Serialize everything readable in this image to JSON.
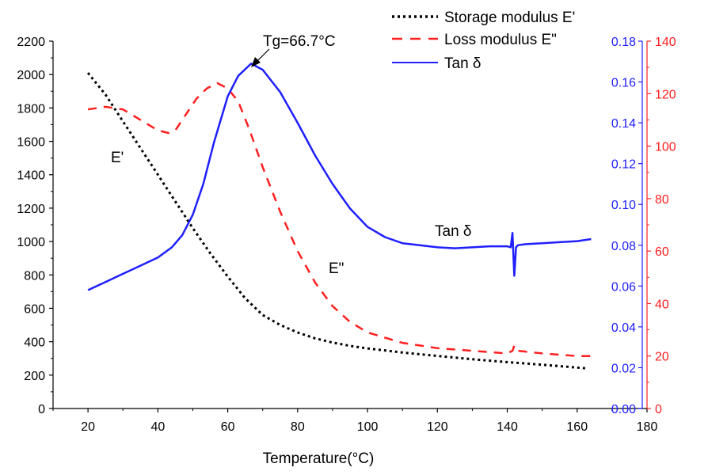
{
  "chart_data": {
    "type": "line",
    "title": "",
    "xlabel": "Temperature(°C)",
    "xlim": [
      10,
      180
    ],
    "x_ticks": [
      20,
      40,
      60,
      80,
      100,
      120,
      140,
      160,
      180
    ],
    "y_left": {
      "label": "",
      "lim": [
        0,
        2200
      ],
      "ticks": [
        0,
        200,
        400,
        600,
        800,
        1000,
        1200,
        1400,
        1600,
        1800,
        2000,
        2200
      ],
      "color": "#000000"
    },
    "y_right_blue": {
      "label": "",
      "lim": [
        0,
        0.18
      ],
      "ticks": [
        "0.00",
        "0.02",
        "0.04",
        "0.06",
        "0.08",
        "0.10",
        "0.12",
        "0.14",
        "0.16",
        "0.18"
      ],
      "color": "#1f1fff"
    },
    "y_right_red": {
      "label": "",
      "lim": [
        0,
        140
      ],
      "ticks": [
        0,
        20,
        40,
        60,
        80,
        100,
        120,
        140
      ],
      "color": "#ff1f1f"
    },
    "legend": {
      "placement": "top-right",
      "entries": [
        "Storage modulus E'",
        "Loss modulus E\"",
        "Tan δ"
      ]
    },
    "annotations": {
      "tg": "Tg=66.7°C",
      "e_prime": "E'",
      "e_double_prime": "E\"",
      "tan_delta": "Tan δ"
    },
    "series": [
      {
        "name": "Storage modulus E'",
        "axis": "left",
        "color": "#000000",
        "style": "dotted",
        "x": [
          20,
          25,
          30,
          35,
          40,
          45,
          50,
          55,
          60,
          65,
          70,
          75,
          80,
          85,
          90,
          95,
          100,
          110,
          120,
          130,
          140,
          150,
          160,
          163
        ],
        "y": [
          2010,
          1880,
          1720,
          1560,
          1400,
          1240,
          1080,
          930,
          790,
          660,
          560,
          500,
          455,
          420,
          395,
          375,
          360,
          335,
          315,
          295,
          278,
          262,
          245,
          240
        ]
      },
      {
        "name": "Loss modulus E\"",
        "axis": "right_red",
        "color": "#ff1f1f",
        "style": "dashed",
        "x": [
          20,
          25,
          30,
          35,
          40,
          43,
          45,
          48,
          51,
          54,
          57,
          60,
          63,
          66,
          70,
          75,
          80,
          85,
          90,
          95,
          100,
          110,
          120,
          130,
          140,
          141.5,
          142,
          143,
          150,
          160,
          164
        ],
        "y": [
          114,
          115,
          114,
          110,
          106,
          105,
          106,
          112,
          118,
          122,
          124,
          122,
          117,
          107,
          92,
          75,
          60,
          48,
          39,
          33,
          29,
          25,
          23,
          22,
          21,
          22,
          24,
          22,
          21,
          20,
          20
        ]
      },
      {
        "name": "Tan δ",
        "axis": "right_blue",
        "color": "#1f1fff",
        "style": "solid",
        "x": [
          20,
          25,
          30,
          35,
          40,
          44,
          47,
          50,
          53,
          56,
          60,
          63,
          66.7,
          70,
          75,
          80,
          85,
          90,
          95,
          100,
          105,
          110,
          115,
          120,
          125,
          130,
          135,
          140,
          141,
          141.5,
          142,
          142.5,
          143,
          145,
          150,
          155,
          160,
          164
        ],
        "y": [
          0.058,
          0.062,
          0.066,
          0.07,
          0.074,
          0.079,
          0.085,
          0.095,
          0.11,
          0.13,
          0.153,
          0.163,
          0.169,
          0.166,
          0.155,
          0.14,
          0.124,
          0.11,
          0.098,
          0.089,
          0.084,
          0.081,
          0.08,
          0.079,
          0.0785,
          0.079,
          0.0795,
          0.0795,
          0.079,
          0.086,
          0.065,
          0.079,
          0.08,
          0.0805,
          0.081,
          0.0815,
          0.082,
          0.083
        ]
      }
    ]
  }
}
